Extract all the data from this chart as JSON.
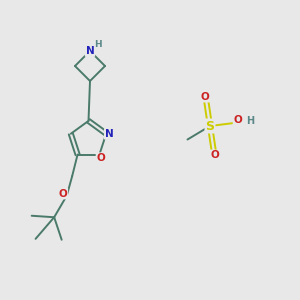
{
  "bg_color": "#e8e8e8",
  "atom_colors": {
    "C": "#4a7a6a",
    "N": "#2222bb",
    "O": "#cc2222",
    "S": "#cccc00",
    "H": "#5a8888"
  },
  "bond_color": "#4a7a6a",
  "figsize": [
    3.0,
    3.0
  ],
  "dpi": 100,
  "xlim": [
    0,
    10
  ],
  "ylim": [
    0,
    10
  ]
}
